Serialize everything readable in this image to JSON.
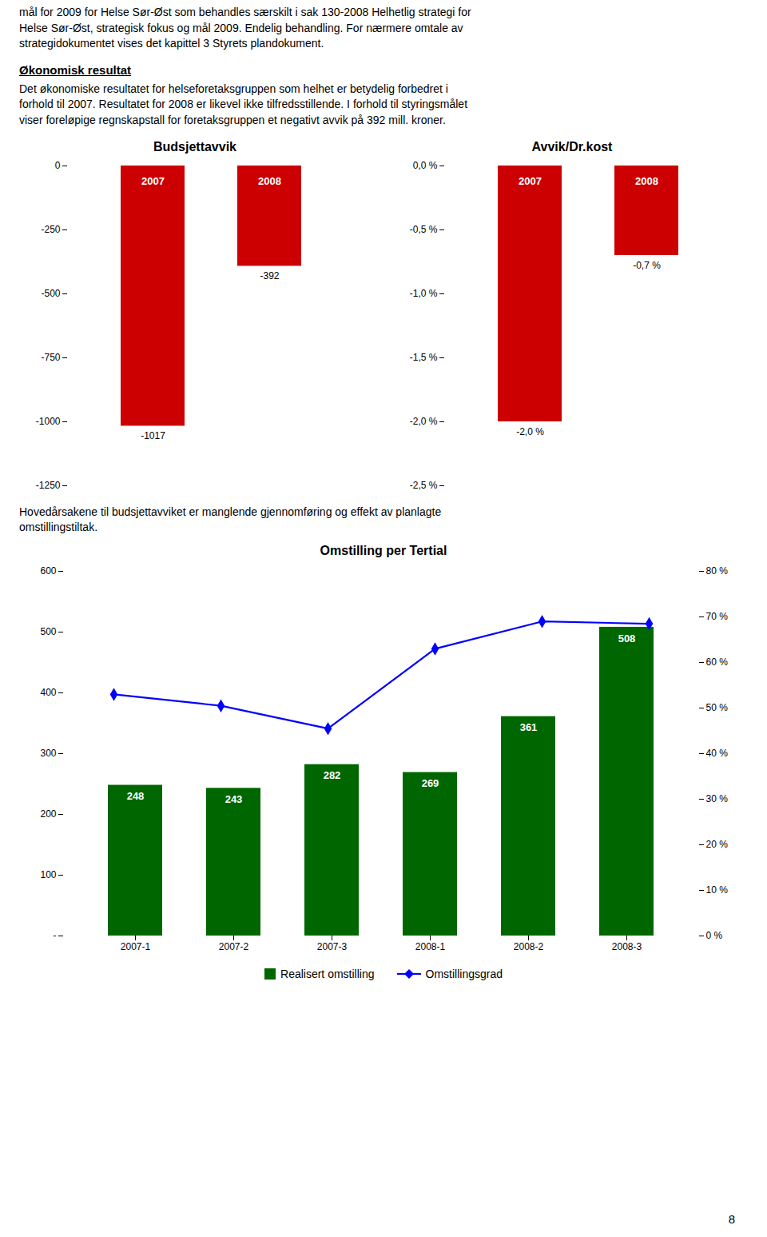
{
  "page_texts": {
    "intro": "mål for 2009 for Helse Sør-Øst som behandles særskilt i sak 130-2008 Helhetlig strategi for\nHelse Sør-Øst, strategisk fokus og mål 2009. Endelig behandling. For nærmere omtale av\nstrategidokumentet vises det kapittel 3 Styrets plandokument.",
    "section_header": "Økonomisk resultat",
    "section_text": "Det økonomiske resultatet for helseforetaksgruppen som helhet er betydelig forbedret i\nforhold til 2007. Resultatet for 2008 er likevel ikke tilfredsstillende. I forhold til styringsmålet\nviser foreløpige regnskapstall for foretaksgruppen et negativt avvik på 392 mill. kroner.",
    "paragraph": "Hovedårsakene til budsjettavviket er manglende gjennomføring og effekt av planlagte\nomstillingstiltak.",
    "page_number": "8"
  },
  "chart_data": [
    {
      "type": "bar",
      "title": "Budsjettavvik",
      "categories": [
        "2007",
        "2008"
      ],
      "values": [
        -1017,
        -392
      ],
      "color": "#cc0000",
      "ylim": [
        -1250,
        0
      ],
      "yticks": [
        0,
        -250,
        -500,
        -750,
        -1000,
        -1250
      ],
      "data_labels": true,
      "tick_labels": "y"
    },
    {
      "type": "bar",
      "title": "Avvik/Dr.kost",
      "categories": [
        "2007",
        "2008"
      ],
      "values": [
        -2.0,
        -0.7
      ],
      "value_labels": [
        "-2,0 %",
        "-0,7 %"
      ],
      "color": "#cc0000",
      "ylim": [
        -2.5,
        0.0
      ],
      "yticks": [
        {
          "value": 0.0,
          "label": "0,0 %"
        },
        {
          "value": -0.5,
          "label": "-0,5 %"
        },
        {
          "value": -1.0,
          "label": "-1,0 %"
        },
        {
          "value": -1.5,
          "label": "-1,5 %"
        },
        {
          "value": -2.0,
          "label": "-2,0 %"
        },
        {
          "value": -2.5,
          "label": "-2,5 %"
        }
      ],
      "data_labels": true,
      "tick_labels": "y"
    },
    {
      "type": "bar",
      "title": "Omstilling per Tertial",
      "categories": [
        "2007-1",
        "2007-2",
        "2007-3",
        "2008-1",
        "2008-2",
        "2008-3"
      ],
      "series": [
        {
          "name": "Realisert omstilling",
          "type": "bar",
          "color": "#006600",
          "values": [
            248,
            243,
            282,
            269,
            361,
            508
          ],
          "data_labels": true
        },
        {
          "name": "Omstillingsgrad",
          "type": "line",
          "color": "#0000ff",
          "marker": "diamond",
          "axis": "y2",
          "values": [
            53.0,
            50.5,
            45.5,
            63.0,
            69.0,
            68.5
          ]
        }
      ],
      "ylim": [
        0,
        600
      ],
      "yticks": [
        {
          "value": 0,
          "label": "-"
        },
        100,
        200,
        300,
        400,
        500,
        600
      ],
      "y2lim": [
        0,
        80
      ],
      "y2ticks": [
        {
          "value": 0,
          "label": "0 %"
        },
        {
          "value": 10,
          "label": "10 %"
        },
        {
          "value": 20,
          "label": "20 %"
        },
        {
          "value": 30,
          "label": "30 %"
        },
        {
          "value": 40,
          "label": "40 %"
        },
        {
          "value": 50,
          "label": "50 %"
        },
        {
          "value": 60,
          "label": "60 %"
        },
        {
          "value": 70,
          "label": "70 %"
        },
        {
          "value": 80,
          "label": "80 %"
        }
      ],
      "legend": "bottom"
    }
  ]
}
